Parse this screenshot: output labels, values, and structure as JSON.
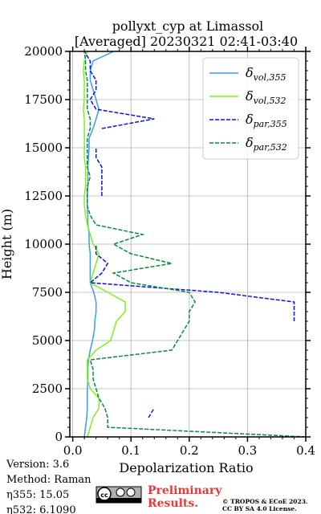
{
  "chart_data": {
    "type": "line",
    "title": "pollyxt_cyp at Limassol",
    "subtitle": "[Averaged] 20230321 02:41-03:40",
    "x_label": "Depolarization Ratio",
    "y_label": "Height (m)",
    "xlim": [
      -0.005,
      0.4
    ],
    "ylim": [
      0,
      20000
    ],
    "xticks": [
      {
        "value": 0,
        "label": "0.0"
      },
      0.1,
      0.2,
      0.3,
      0.4
    ],
    "yticks": [
      0,
      2500,
      5000,
      7500,
      10000,
      12500,
      15000,
      17500,
      20000
    ],
    "grid": true,
    "legend": "upper right",
    "heights": [
      0,
      500,
      1000,
      1500,
      2000,
      2500,
      3000,
      3500,
      4000,
      4500,
      5000,
      5500,
      6000,
      6500,
      7000,
      7500,
      8000,
      8500,
      9000,
      9500,
      10000,
      10500,
      11000,
      11500,
      12000,
      12500,
      13000,
      13500,
      14000,
      14500,
      15000,
      15500,
      16000,
      16500,
      17000,
      17500,
      18000,
      18500,
      19000,
      19500,
      20000
    ],
    "series": [
      {
        "name": "δvol,355",
        "color": "#3a9ee8",
        "dash": false,
        "values": [
          0.02,
          0.022,
          0.024,
          0.025,
          0.025,
          0.025,
          0.026,
          0.026,
          0.027,
          0.03,
          0.034,
          0.037,
          0.038,
          0.04,
          0.04,
          0.036,
          0.03,
          0.03,
          0.03,
          0.03,
          0.028,
          0.028,
          0.026,
          0.026,
          0.025,
          0.025,
          0.026,
          0.026,
          0.026,
          0.027,
          0.028,
          0.028,
          0.035,
          0.04,
          0.045,
          0.04,
          0.035,
          0.03,
          0.03,
          0.035,
          0.07
        ]
      },
      {
        "name": "δvol,532",
        "color": "#7ef01e",
        "dash": false,
        "values": [
          0.025,
          0.03,
          0.035,
          0.045,
          0.045,
          0.03,
          0.025,
          0.025,
          0.025,
          0.04,
          0.065,
          0.07,
          0.075,
          0.09,
          0.09,
          0.06,
          0.03,
          0.035,
          0.04,
          0.045,
          0.035,
          0.03,
          0.025,
          0.022,
          0.02,
          0.02,
          0.022,
          0.022,
          0.022,
          0.02,
          0.02,
          0.02,
          0.02,
          0.02,
          0.018,
          0.02,
          0.02,
          0.02,
          0.018,
          0.02,
          0.025
        ]
      },
      {
        "name": "δpar,355",
        "color": "#0a14e0",
        "dash": true,
        "values": [
          null,
          null,
          0.13,
          0.14,
          null,
          0.025,
          null,
          null,
          null,
          0.02,
          null,
          null,
          0.38,
          0.38,
          0.38,
          0.25,
          0.03,
          0.05,
          0.06,
          0.04,
          0.04,
          null,
          0.05,
          null,
          null,
          0.05,
          0.05,
          0.05,
          0.05,
          0.04,
          0.04,
          null,
          0.05,
          0.14,
          0.04,
          0.03,
          0.04,
          0.04,
          0.03,
          0.03,
          0.02
        ]
      },
      {
        "name": "δpar,532",
        "color": "#0a8a3c",
        "dash": true,
        "values": [
          0.4,
          0.06,
          0.06,
          0.055,
          0.045,
          0.04,
          0.035,
          0.035,
          0.03,
          0.17,
          0.18,
          0.19,
          0.2,
          0.2,
          0.21,
          0.2,
          0.1,
          0.07,
          0.17,
          0.1,
          0.07,
          0.12,
          0.04,
          0.03,
          0.025,
          0.025,
          0.025,
          0.03,
          0.025,
          0.025,
          0.025,
          0.025,
          0.03,
          0.03,
          0.025,
          0.025,
          0.025,
          0.025,
          0.022,
          0.022,
          0.02
        ]
      }
    ],
    "annotations": [
      "Version: 3.6",
      "Method: Raman",
      "η355:  15.05",
      "η532: 6.1090"
    ],
    "notice": "Preliminary Results.",
    "copyright": [
      "© TROPOS & ECoE 2023.",
      "CC BY SA 4.0 License."
    ]
  }
}
